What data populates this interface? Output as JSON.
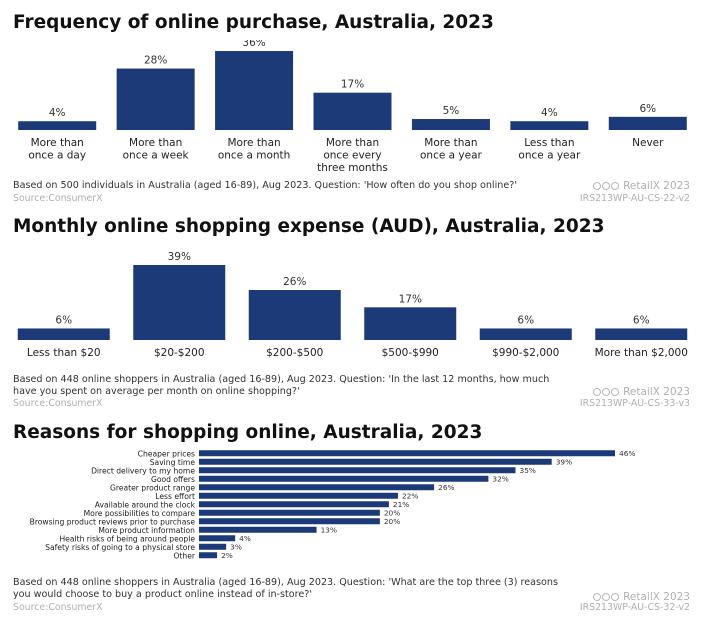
{
  "brand": "RetailX 2023",
  "colors": {
    "bar": "#1c3a78",
    "value_text": "#333333",
    "label_text": "#222222"
  },
  "chart_data": [
    {
      "type": "bar",
      "title": "Frequency of online purchase, Australia, 2023",
      "categories": [
        [
          "More than",
          "once a day"
        ],
        [
          "More than",
          "once a week"
        ],
        [
          "More than",
          "once a month"
        ],
        [
          "More than",
          "once every",
          "three months"
        ],
        [
          "More than",
          "once a year"
        ],
        [
          "Less than",
          "once a year"
        ],
        [
          "Never"
        ]
      ],
      "values": [
        4,
        28,
        36,
        17,
        5,
        4,
        6
      ],
      "value_suffix": "%",
      "ylim": [
        0,
        36
      ],
      "note": "Based on 500 individuals in Australia (aged 16-89), Aug 2023. Question: 'How often do you shop online?'",
      "source": "Source:ConsumerX",
      "code": "IRS213WP-AU-CS-22-v2"
    },
    {
      "type": "bar",
      "title": "Monthly online shopping expense (AUD), Australia, 2023",
      "categories": [
        [
          "Less than $20"
        ],
        [
          "$20-$200"
        ],
        [
          "$200-$500"
        ],
        [
          "$500-$990"
        ],
        [
          "$990-$2,000"
        ],
        [
          "More than $2,000"
        ]
      ],
      "values": [
        6,
        39,
        26,
        17,
        6,
        6
      ],
      "value_suffix": "%",
      "ylim": [
        0,
        39
      ],
      "note": "Based on 448 online shoppers in Australia (aged 16-89), Aug 2023. Question: 'In the last 12 months, how much have you spent on average per month on online shopping?'",
      "source": "Source:ConsumerX",
      "code": "IRS213WP-AU-CS-33-v3"
    },
    {
      "type": "bar",
      "orientation": "horizontal",
      "title": "Reasons for shopping online, Australia, 2023",
      "categories": [
        "Cheaper prices",
        "Saving time",
        "Direct delivery to my home",
        "Good offers",
        "Greater product range",
        "Less effort",
        "Available around the clock",
        "More possibilities to compare",
        "Browsing product reviews prior to purchase",
        "More product information",
        "Health risks of being around people",
        "Safety risks of going to a physical store",
        "Other"
      ],
      "values": [
        46,
        39,
        35,
        32,
        26,
        22,
        21,
        20,
        20,
        13,
        4,
        3,
        2
      ],
      "value_suffix": "%",
      "xlim": [
        0,
        46
      ],
      "note": "Based on 448 online shoppers in Australia (aged 16-89), Aug 2023. Question: 'What are the top three (3) reasons you would choose to buy a product online instead of in-store?'",
      "source": "Source:ConsumerX",
      "code": "IRS213WP-AU-CS-32-v2"
    }
  ]
}
